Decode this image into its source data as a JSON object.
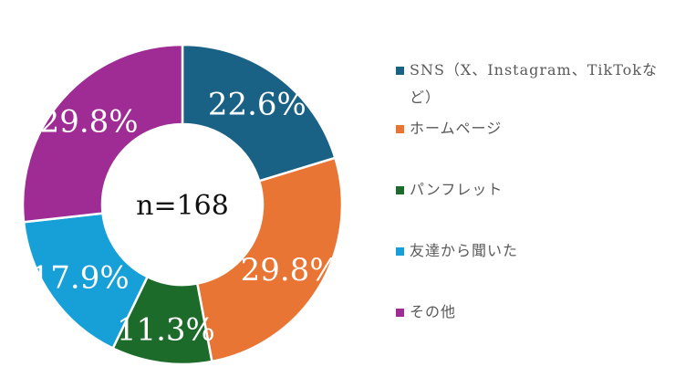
{
  "chart_data": {
    "type": "pie",
    "subtype": "donut",
    "title": "",
    "center_label": "n=168",
    "categories": [
      "SNS（X、Instagram、TikTokなど）",
      "ホームページ",
      "パンフレット",
      "友達から聞いた",
      "その他"
    ],
    "values": [
      22.6,
      29.8,
      11.3,
      17.9,
      29.8
    ],
    "value_labels": [
      "22.6%",
      "29.8%",
      "11.3%",
      "17.9%",
      "29.8%"
    ],
    "colors": [
      "#1a6285",
      "#e97535",
      "#1d6b2a",
      "#16a0d7",
      "#9f2c94"
    ],
    "legend_position": "right",
    "unit": "%"
  },
  "legend": {
    "items": [
      {
        "label": "SNS（X、Instagram、TikTokなど）",
        "color": "#1a6285"
      },
      {
        "label": "ホームページ",
        "color": "#e97535"
      },
      {
        "label": "パンフレット",
        "color": "#1d6b2a"
      },
      {
        "label": "友達から聞いた",
        "color": "#16a0d7"
      },
      {
        "label": "その他",
        "color": "#9f2c94"
      }
    ]
  }
}
